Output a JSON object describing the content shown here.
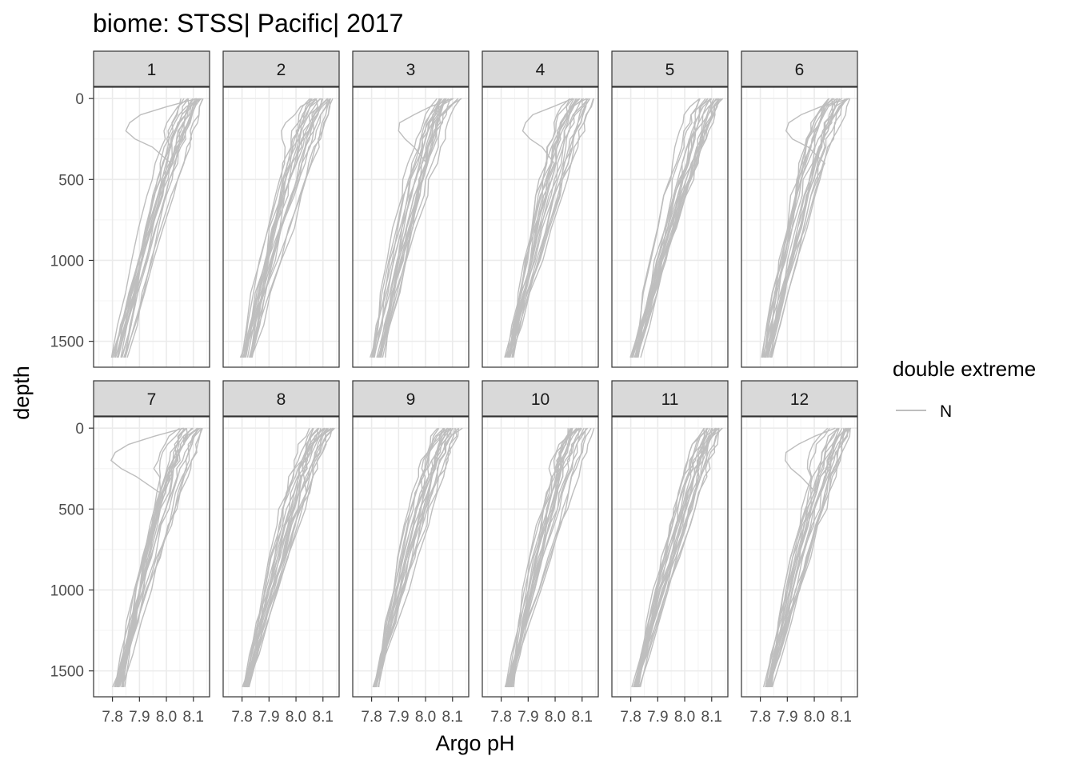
{
  "chart_data": {
    "type": "line",
    "title": "biome: STSS| Pacific| 2017",
    "xlabel": "Argo pH",
    "ylabel": "depth",
    "xlim": [
      7.73,
      8.16
    ],
    "ylim": [
      1660,
      -70
    ],
    "x_ticks": [
      7.8,
      7.9,
      8.0,
      8.1
    ],
    "x_tick_labels": [
      "7.8",
      "7.9",
      "8.0",
      "8.1"
    ],
    "y_ticks": [
      0,
      500,
      1000,
      1500
    ],
    "y_tick_labels": [
      "0",
      "500",
      "1000",
      "1500"
    ],
    "panels": [
      "1",
      "2",
      "3",
      "4",
      "5",
      "6",
      "7",
      "8",
      "9",
      "10",
      "11",
      "12"
    ],
    "depth_levels": [
      0,
      50,
      100,
      150,
      200,
      250,
      300,
      400,
      500,
      600,
      800,
      1000,
      1200,
      1400,
      1600
    ],
    "panel_bottom_ph_ranges": [
      [
        7.79,
        7.86
      ],
      [
        7.79,
        7.84
      ],
      [
        7.8,
        7.87
      ],
      [
        7.82,
        7.84
      ],
      [
        7.8,
        7.83
      ],
      [
        7.81,
        7.84
      ],
      [
        7.8,
        7.84
      ],
      [
        7.81,
        7.82
      ],
      [
        7.81,
        7.82
      ],
      [
        7.82,
        7.84
      ],
      [
        7.81,
        7.83
      ],
      [
        7.81,
        7.84
      ]
    ],
    "profiles_per_panel": 20,
    "legend": {
      "title": "double extreme",
      "entries": [
        {
          "label": "N",
          "color": "#bebebe"
        }
      ],
      "position": "right"
    },
    "colors": {
      "line": "#bebebe",
      "strip": "#d9d9d9",
      "grid_major": "#ebebeb",
      "grid_minor": "#f4f4f4",
      "border": "#333333",
      "text": "#000000",
      "tick_text": "#4d4d4d"
    }
  }
}
